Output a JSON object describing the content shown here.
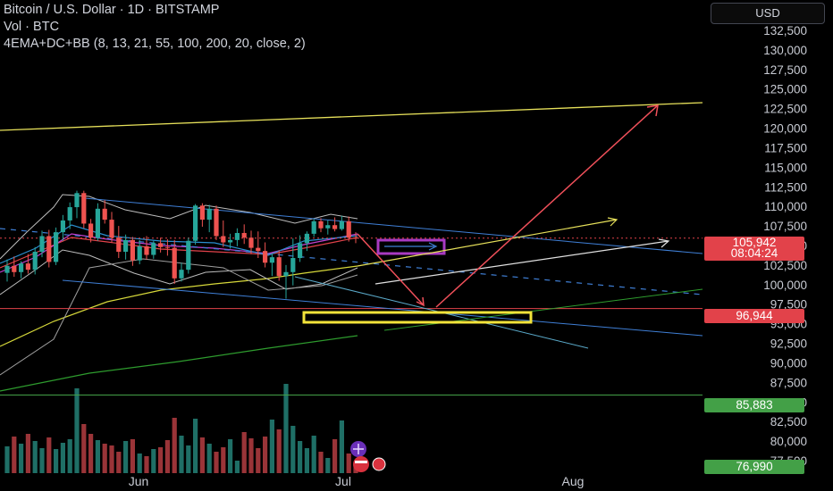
{
  "legend": {
    "symbol_line": "Bitcoin / U.S. Dollar · 1D · BITSTAMP",
    "volume_line": "Vol · BTC",
    "indicator_line": "4EMA+DC+BB (8, 13, 21, 55, 100, 200, 20, close, 2)"
  },
  "currency_button": "USD",
  "price_axis": {
    "ticks": [
      "132,500",
      "130,000",
      "127,500",
      "125,000",
      "122,500",
      "120,000",
      "117,500",
      "115,000",
      "112,500",
      "110,000",
      "107,500",
      "105,000",
      "102,500",
      "100,000",
      "97,500",
      "95,000",
      "92,500",
      "90,000",
      "87,500",
      "85,000",
      "82,500",
      "80,000",
      "77,500"
    ],
    "tick_values": [
      132500,
      130000,
      127500,
      125000,
      122500,
      120000,
      117500,
      115000,
      112500,
      110000,
      107500,
      105000,
      102500,
      100000,
      97500,
      95000,
      92500,
      90000,
      87500,
      85000,
      82500,
      80000,
      77500
    ]
  },
  "time_axis": {
    "labels": [
      "Jun",
      "Jul",
      "Aug"
    ]
  },
  "price_tags": {
    "current_price": "105,942",
    "countdown": "08:04:24",
    "level_red": "96,944",
    "level_green_1": "85,883",
    "level_green_2": "76,990"
  },
  "colors": {
    "background": "#000000",
    "bull_candle": "#26a69a",
    "bear_candle": "#ef5350",
    "red_level": "#e2424a",
    "green_level": "#43a047",
    "yellow_line": "#e6e05a",
    "trend_blue": "#3f7fd6",
    "cyan_channel": "#5aa9c9",
    "purple_box": "#a93ac2",
    "yellow_box": "#f2e33a",
    "projection_red": "#f0505a",
    "ema_green": "#2e9c2e"
  },
  "chart_data": {
    "type": "candlestick",
    "title": "Bitcoin / U.S. Dollar · 1D · BITSTAMP",
    "ylim": [
      76000,
      134000
    ],
    "x_labels": [
      "Jun",
      "Jul",
      "Aug"
    ],
    "candles": [
      {
        "o": 101500,
        "h": 103200,
        "l": 100400,
        "c": 102400
      },
      {
        "o": 102400,
        "h": 103600,
        "l": 101000,
        "c": 101600
      },
      {
        "o": 101600,
        "h": 103000,
        "l": 100800,
        "c": 102700
      },
      {
        "o": 102700,
        "h": 103900,
        "l": 101400,
        "c": 101900
      },
      {
        "o": 101900,
        "h": 104800,
        "l": 101300,
        "c": 104200
      },
      {
        "o": 104200,
        "h": 106900,
        "l": 103500,
        "c": 106200
      },
      {
        "o": 106200,
        "h": 107000,
        "l": 102200,
        "c": 102900
      },
      {
        "o": 102900,
        "h": 107300,
        "l": 102500,
        "c": 106700
      },
      {
        "o": 106700,
        "h": 108900,
        "l": 105600,
        "c": 108200
      },
      {
        "o": 108200,
        "h": 110500,
        "l": 107100,
        "c": 109900
      },
      {
        "o": 109900,
        "h": 112000,
        "l": 108500,
        "c": 111700
      },
      {
        "o": 111700,
        "h": 112000,
        "l": 107200,
        "c": 107800
      },
      {
        "o": 107800,
        "h": 108400,
        "l": 105400,
        "c": 106000
      },
      {
        "o": 106000,
        "h": 110400,
        "l": 105600,
        "c": 109700
      },
      {
        "o": 109700,
        "h": 110800,
        "l": 107800,
        "c": 108300
      },
      {
        "o": 108300,
        "h": 109300,
        "l": 105400,
        "c": 106000
      },
      {
        "o": 106000,
        "h": 107500,
        "l": 103400,
        "c": 104200
      },
      {
        "o": 104200,
        "h": 106400,
        "l": 103200,
        "c": 105700
      },
      {
        "o": 105700,
        "h": 106100,
        "l": 102400,
        "c": 103100
      },
      {
        "o": 103100,
        "h": 105700,
        "l": 102600,
        "c": 104900
      },
      {
        "o": 104900,
        "h": 106200,
        "l": 103200,
        "c": 103800
      },
      {
        "o": 103800,
        "h": 105600,
        "l": 103300,
        "c": 105300
      },
      {
        "o": 105300,
        "h": 106000,
        "l": 104100,
        "c": 104800
      },
      {
        "o": 104800,
        "h": 105800,
        "l": 103700,
        "c": 104700
      },
      {
        "o": 104700,
        "h": 105700,
        "l": 100100,
        "c": 100800
      },
      {
        "o": 100800,
        "h": 102800,
        "l": 100400,
        "c": 101900
      },
      {
        "o": 101900,
        "h": 106000,
        "l": 101400,
        "c": 105600
      },
      {
        "o": 105600,
        "h": 110300,
        "l": 105100,
        "c": 110100
      },
      {
        "o": 110100,
        "h": 110400,
        "l": 107400,
        "c": 108300
      },
      {
        "o": 108300,
        "h": 110200,
        "l": 106700,
        "c": 109700
      },
      {
        "o": 109700,
        "h": 110100,
        "l": 105700,
        "c": 106200
      },
      {
        "o": 106200,
        "h": 108200,
        "l": 104800,
        "c": 105400
      },
      {
        "o": 105400,
        "h": 106500,
        "l": 104600,
        "c": 105700
      },
      {
        "o": 105700,
        "h": 107200,
        "l": 104900,
        "c": 106600
      },
      {
        "o": 106600,
        "h": 107700,
        "l": 105200,
        "c": 106000
      },
      {
        "o": 106000,
        "h": 106900,
        "l": 103900,
        "c": 104700
      },
      {
        "o": 104700,
        "h": 106800,
        "l": 103400,
        "c": 104300
      },
      {
        "o": 104300,
        "h": 105400,
        "l": 102200,
        "c": 102800
      },
      {
        "o": 102800,
        "h": 104000,
        "l": 101100,
        "c": 103500
      },
      {
        "o": 103500,
        "h": 104400,
        "l": 100500,
        "c": 101100
      },
      {
        "o": 101100,
        "h": 102500,
        "l": 98200,
        "c": 101600
      },
      {
        "o": 101600,
        "h": 105900,
        "l": 99900,
        "c": 103400
      },
      {
        "o": 103400,
        "h": 106300,
        "l": 102900,
        "c": 105300
      },
      {
        "o": 105300,
        "h": 106800,
        "l": 104300,
        "c": 106500
      },
      {
        "o": 106500,
        "h": 108400,
        "l": 106100,
        "c": 108100
      },
      {
        "o": 108100,
        "h": 108500,
        "l": 106700,
        "c": 107200
      },
      {
        "o": 107200,
        "h": 108200,
        "l": 106400,
        "c": 107600
      },
      {
        "o": 107600,
        "h": 108600,
        "l": 106800,
        "c": 107100
      },
      {
        "o": 107100,
        "h": 108800,
        "l": 106900,
        "c": 108100
      },
      {
        "o": 108100,
        "h": 108700,
        "l": 105500,
        "c": 106000
      },
      {
        "o": 106000,
        "h": 106700,
        "l": 105300,
        "c": 105942
      }
    ],
    "volumes_relative": [
      0.3,
      0.41,
      0.33,
      0.44,
      0.36,
      0.28,
      0.4,
      0.27,
      0.34,
      0.38,
      0.95,
      0.55,
      0.44,
      0.37,
      0.33,
      0.31,
      0.24,
      0.36,
      0.38,
      0.22,
      0.19,
      0.27,
      0.29,
      0.37,
      0.62,
      0.42,
      0.31,
      0.61,
      0.4,
      0.33,
      0.24,
      0.29,
      0.38,
      0.14,
      0.46,
      0.39,
      0.28,
      0.41,
      0.6,
      0.49,
      1.0,
      0.53,
      0.36,
      0.28,
      0.42,
      0.24,
      0.17,
      0.38,
      0.59,
      0.22,
      0.1
    ],
    "horizontal_levels": [
      96944,
      85883
    ],
    "last_price": 105942
  }
}
